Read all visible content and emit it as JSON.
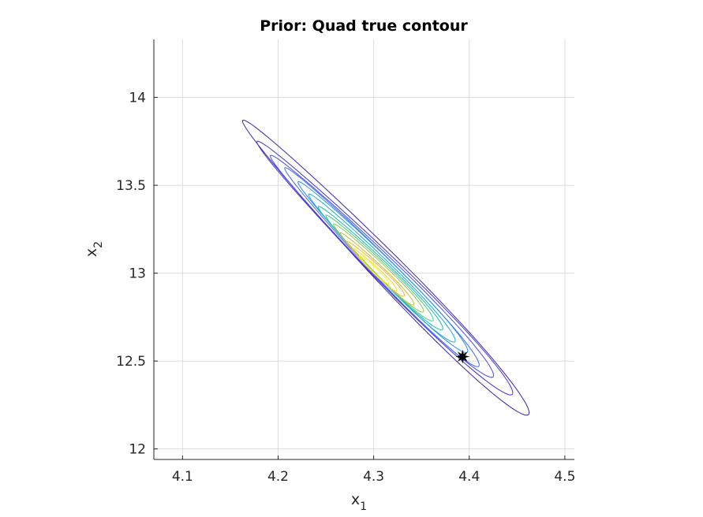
{
  "chart_data": {
    "type": "contour",
    "title": "Prior: Quad true contour",
    "xlabel": "x",
    "xlabel_sub": "1",
    "ylabel": "x",
    "ylabel_sub": "2",
    "xlim": [
      4.07,
      4.51
    ],
    "ylim": [
      11.94,
      14.33
    ],
    "xticks": [
      4.1,
      4.2,
      4.3,
      4.4,
      4.5
    ],
    "xtick_labels": [
      "4.1",
      "4.2",
      "4.3",
      "4.4",
      "4.5"
    ],
    "yticks": [
      12,
      12.5,
      13,
      13.5,
      14
    ],
    "ytick_labels": [
      "12",
      "12.5",
      "13",
      "13.5",
      "14"
    ],
    "grid": true,
    "marker": {
      "x": 4.393,
      "y": 12.525,
      "color": "#000000",
      "shape": "star"
    },
    "contour_levels": [
      {
        "color": "#3e26a8",
        "x1": 4.163,
        "y1": 13.87,
        "x2": 4.462,
        "y2": 12.195,
        "width": 0.032
      },
      {
        "color": "#4433d4",
        "x1": 4.178,
        "y1": 13.75,
        "x2": 4.445,
        "y2": 12.31,
        "width": 0.028
      },
      {
        "color": "#4a4cf2",
        "x1": 4.192,
        "y1": 13.67,
        "x2": 4.425,
        "y2": 12.41,
        "width": 0.025
      },
      {
        "color": "#3f6dfc",
        "x1": 4.207,
        "y1": 13.6,
        "x2": 4.41,
        "y2": 12.47,
        "width": 0.022
      },
      {
        "color": "#2c8ff0",
        "x1": 4.221,
        "y1": 13.52,
        "x2": 4.398,
        "y2": 12.55,
        "width": 0.02
      },
      {
        "color": "#1ba9d9",
        "x1": 4.232,
        "y1": 13.45,
        "x2": 4.385,
        "y2": 12.61,
        "width": 0.018
      },
      {
        "color": "#18bdb0",
        "x1": 4.242,
        "y1": 13.38,
        "x2": 4.372,
        "y2": 12.68,
        "width": 0.016
      },
      {
        "color": "#48cb86",
        "x1": 4.25,
        "y1": 13.33,
        "x2": 4.362,
        "y2": 12.73,
        "width": 0.014
      },
      {
        "color": "#8cca5a",
        "x1": 4.258,
        "y1": 13.28,
        "x2": 4.352,
        "y2": 12.78,
        "width": 0.012
      },
      {
        "color": "#c5bc3a",
        "x1": 4.265,
        "y1": 13.23,
        "x2": 4.342,
        "y2": 12.82,
        "width": 0.01
      },
      {
        "color": "#f0b93a",
        "x1": 4.272,
        "y1": 13.18,
        "x2": 4.332,
        "y2": 12.87,
        "width": 0.009
      },
      {
        "color": "#fad228",
        "x1": 4.278,
        "y1": 13.14,
        "x2": 4.324,
        "y2": 12.9,
        "width": 0.007
      },
      {
        "color": "#f9fb0e",
        "x1": 4.285,
        "y1": 13.1,
        "x2": 4.316,
        "y2": 12.94,
        "width": 0.005
      }
    ]
  }
}
